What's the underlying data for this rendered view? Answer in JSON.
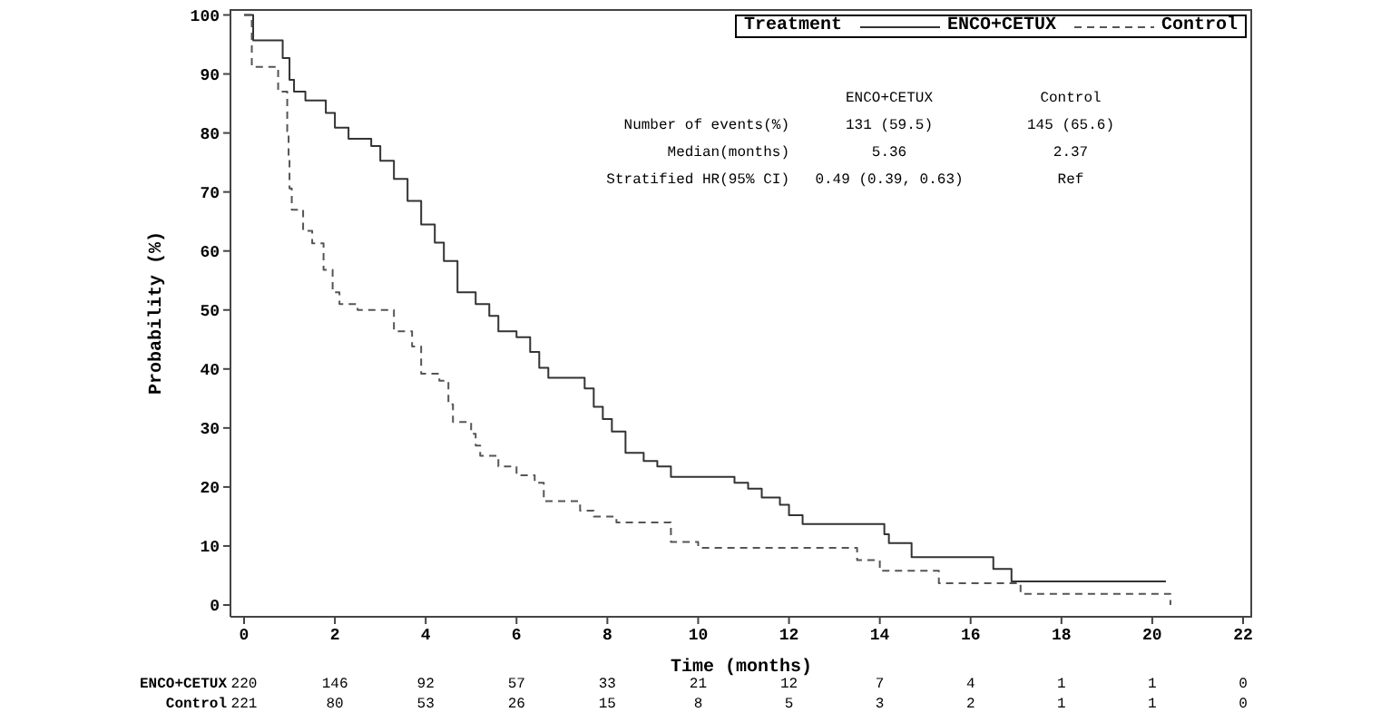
{
  "chart_data": {
    "type": "step",
    "xlabel": "Time (months)",
    "ylabel": "Probability (%)",
    "legend_title": "Treatment",
    "legend": "top right",
    "xlim": [
      -0.3,
      22.2
    ],
    "xticks": [
      0,
      2,
      4,
      6,
      8,
      10,
      12,
      14,
      16,
      18,
      20,
      22
    ],
    "ylim": [
      -2,
      101
    ],
    "yticks": [
      0,
      10,
      20,
      30,
      40,
      50,
      60,
      70,
      80,
      90,
      100
    ],
    "series": [
      {
        "name": "ENCO+CETUX",
        "color": "#333333",
        "line_style": "solid",
        "x": [
          0,
          0.2,
          0.85,
          1.0,
          1.1,
          1.35,
          1.8,
          2.0,
          2.3,
          2.8,
          3.0,
          3.3,
          3.6,
          3.9,
          4.2,
          4.4,
          4.7,
          5.1,
          5.4,
          5.6,
          6.0,
          6.3,
          6.5,
          6.7,
          7.5,
          7.7,
          7.9,
          8.1,
          8.4,
          8.8,
          9.1,
          9.4,
          10.8,
          11.1,
          11.4,
          11.8,
          12.0,
          12.3,
          14.1,
          14.2,
          14.7,
          16.5,
          16.9,
          20.3
        ],
        "values": [
          100,
          95.7,
          92.7,
          89,
          87,
          85.5,
          83.4,
          80.9,
          79,
          77.8,
          75.3,
          72.2,
          68.5,
          64.5,
          61.4,
          58.3,
          53,
          51,
          49,
          46.4,
          45.4,
          42.9,
          40.2,
          38.5,
          36.7,
          33.6,
          31.5,
          29.4,
          25.8,
          24.4,
          23.5,
          21.7,
          20.7,
          19.7,
          18.2,
          17,
          15.2,
          13.7,
          12,
          10.5,
          8.1,
          6.1,
          4,
          4
        ]
      },
      {
        "name": "Control",
        "color": "#555555",
        "line_style": "dashed",
        "x": [
          0,
          0.17,
          0.75,
          0.95,
          0.98,
          1.0,
          1.05,
          1.3,
          1.5,
          1.75,
          1.95,
          2.1,
          2.5,
          3.3,
          3.7,
          3.9,
          4.3,
          4.5,
          4.6,
          5.0,
          5.1,
          5.2,
          5.6,
          6.0,
          6.4,
          6.6,
          7.4,
          7.7,
          8.2,
          9.4,
          10.0,
          13.5,
          14.0,
          15.3,
          17.1,
          20.4
        ],
        "values": [
          100,
          91.2,
          87,
          80.3,
          75.7,
          70.6,
          67,
          63.4,
          61.3,
          56.8,
          53,
          51,
          50,
          46.4,
          43.8,
          39.2,
          38,
          34,
          31,
          29,
          27,
          25.3,
          23.5,
          22,
          20.7,
          17.6,
          16,
          15,
          14,
          10.7,
          9.7,
          7.6,
          5.8,
          3.7,
          1.9,
          0
        ]
      }
    ],
    "annotations": [
      "ENCO+CETUX",
      "Control",
      "Number of events(%)",
      "131 (59.5)",
      "145 (65.6)",
      "Median(months)",
      "5.36",
      "2.37",
      "Stratified HR(95% CI)",
      "0.49 (0.39, 0.63)",
      "Ref",
      "ENCO+CETUX",
      "220",
      "146",
      "92",
      "57",
      "33",
      "21",
      "12",
      "7",
      "4",
      "1",
      "1",
      "0",
      "Control",
      "221",
      "80",
      "53",
      "26",
      "15",
      "8",
      "5",
      "3",
      "2",
      "1",
      "1",
      "0"
    ]
  }
}
